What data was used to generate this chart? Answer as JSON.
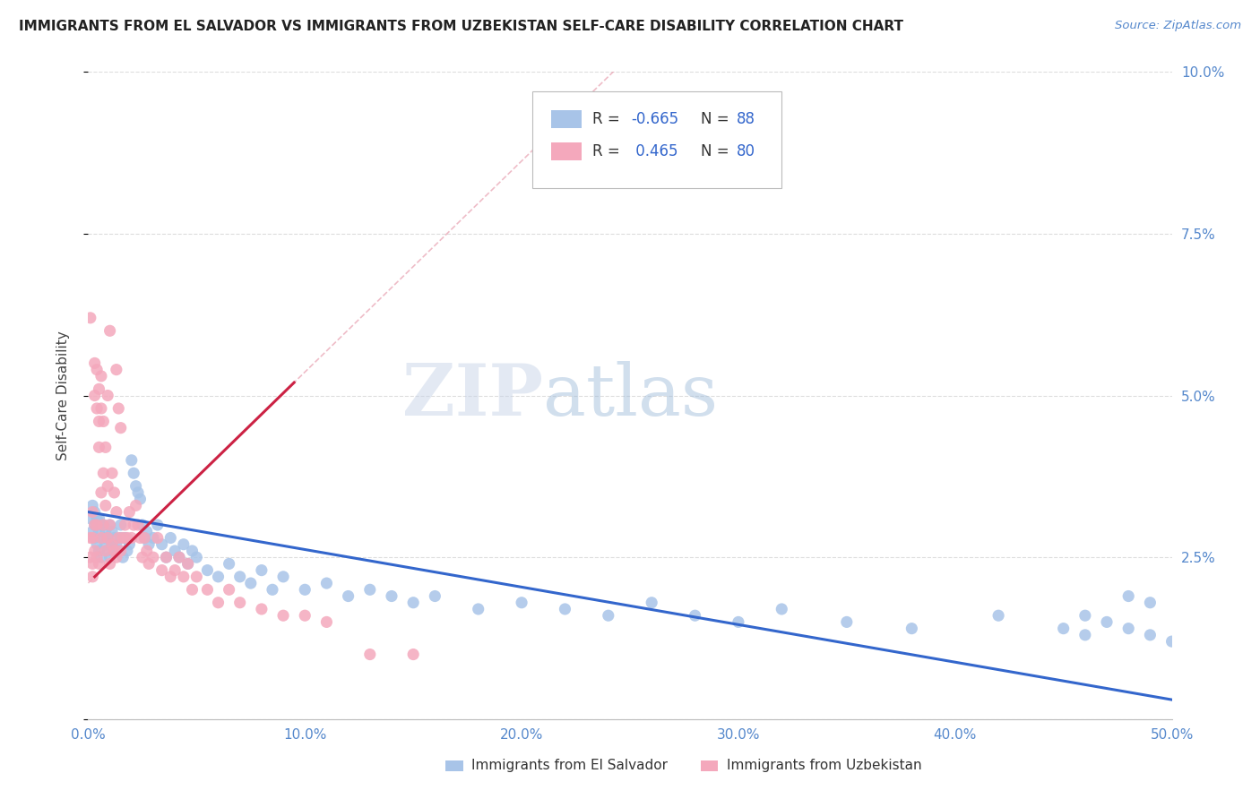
{
  "title": "IMMIGRANTS FROM EL SALVADOR VS IMMIGRANTS FROM UZBEKISTAN SELF-CARE DISABILITY CORRELATION CHART",
  "source": "Source: ZipAtlas.com",
  "ylabel": "Self-Care Disability",
  "xlim": [
    0.0,
    0.5
  ],
  "ylim": [
    0.0,
    0.1
  ],
  "xticks": [
    0.0,
    0.1,
    0.2,
    0.3,
    0.4,
    0.5
  ],
  "xticklabels": [
    "0.0%",
    "10.0%",
    "20.0%",
    "30.0%",
    "40.0%",
    "50.0%"
  ],
  "yticks": [
    0.0,
    0.025,
    0.05,
    0.075,
    0.1
  ],
  "yticklabels": [
    "",
    "2.5%",
    "5.0%",
    "7.5%",
    "10.0%"
  ],
  "legend_labels": [
    "Immigrants from El Salvador",
    "Immigrants from Uzbekistan"
  ],
  "legend_R": [
    "-0.665",
    "0.465"
  ],
  "legend_N": [
    "88",
    "80"
  ],
  "el_salvador_color": "#a8c4e8",
  "uzbekistan_color": "#f4a8bc",
  "el_salvador_line_color": "#3366cc",
  "uzbekistan_line_color": "#cc2244",
  "watermark_zip": "ZIP",
  "watermark_atlas": "atlas",
  "background_color": "#ffffff",
  "grid_color": "#dddddd",
  "el_salvador_x": [
    0.001,
    0.002,
    0.002,
    0.003,
    0.003,
    0.003,
    0.004,
    0.004,
    0.005,
    0.005,
    0.005,
    0.006,
    0.006,
    0.007,
    0.007,
    0.008,
    0.008,
    0.009,
    0.009,
    0.01,
    0.01,
    0.011,
    0.011,
    0.012,
    0.012,
    0.013,
    0.014,
    0.015,
    0.015,
    0.016,
    0.017,
    0.018,
    0.019,
    0.02,
    0.021,
    0.022,
    0.023,
    0.024,
    0.025,
    0.026,
    0.027,
    0.028,
    0.03,
    0.032,
    0.034,
    0.036,
    0.038,
    0.04,
    0.042,
    0.044,
    0.046,
    0.048,
    0.05,
    0.055,
    0.06,
    0.065,
    0.07,
    0.075,
    0.08,
    0.085,
    0.09,
    0.1,
    0.11,
    0.12,
    0.13,
    0.14,
    0.15,
    0.16,
    0.18,
    0.2,
    0.22,
    0.24,
    0.26,
    0.28,
    0.3,
    0.32,
    0.35,
    0.38,
    0.42,
    0.45,
    0.46,
    0.47,
    0.48,
    0.49,
    0.5,
    0.49,
    0.48,
    0.46
  ],
  "el_salvador_y": [
    0.031,
    0.029,
    0.033,
    0.028,
    0.03,
    0.032,
    0.027,
    0.031,
    0.026,
    0.029,
    0.031,
    0.025,
    0.03,
    0.028,
    0.03,
    0.027,
    0.029,
    0.026,
    0.028,
    0.025,
    0.03,
    0.027,
    0.029,
    0.026,
    0.028,
    0.027,
    0.026,
    0.028,
    0.03,
    0.025,
    0.028,
    0.026,
    0.027,
    0.04,
    0.038,
    0.036,
    0.035,
    0.034,
    0.03,
    0.028,
    0.029,
    0.027,
    0.028,
    0.03,
    0.027,
    0.025,
    0.028,
    0.026,
    0.025,
    0.027,
    0.024,
    0.026,
    0.025,
    0.023,
    0.022,
    0.024,
    0.022,
    0.021,
    0.023,
    0.02,
    0.022,
    0.02,
    0.021,
    0.019,
    0.02,
    0.019,
    0.018,
    0.019,
    0.017,
    0.018,
    0.017,
    0.016,
    0.018,
    0.016,
    0.015,
    0.017,
    0.015,
    0.014,
    0.016,
    0.014,
    0.013,
    0.015,
    0.014,
    0.013,
    0.012,
    0.018,
    0.019,
    0.016
  ],
  "uzbekistan_x": [
    0.001,
    0.001,
    0.001,
    0.002,
    0.002,
    0.002,
    0.002,
    0.003,
    0.003,
    0.003,
    0.003,
    0.004,
    0.004,
    0.004,
    0.004,
    0.005,
    0.005,
    0.005,
    0.005,
    0.006,
    0.006,
    0.006,
    0.006,
    0.007,
    0.007,
    0.007,
    0.008,
    0.008,
    0.008,
    0.009,
    0.009,
    0.009,
    0.01,
    0.01,
    0.01,
    0.011,
    0.011,
    0.012,
    0.012,
    0.013,
    0.013,
    0.013,
    0.014,
    0.014,
    0.015,
    0.015,
    0.016,
    0.017,
    0.018,
    0.019,
    0.02,
    0.021,
    0.022,
    0.023,
    0.024,
    0.025,
    0.026,
    0.027,
    0.028,
    0.03,
    0.032,
    0.034,
    0.036,
    0.038,
    0.04,
    0.042,
    0.044,
    0.046,
    0.048,
    0.05,
    0.055,
    0.06,
    0.065,
    0.07,
    0.08,
    0.09,
    0.1,
    0.11,
    0.13,
    0.15
  ],
  "uzbekistan_y": [
    0.025,
    0.028,
    0.062,
    0.024,
    0.028,
    0.032,
    0.022,
    0.026,
    0.03,
    0.05,
    0.055,
    0.025,
    0.03,
    0.048,
    0.054,
    0.024,
    0.042,
    0.046,
    0.051,
    0.028,
    0.035,
    0.048,
    0.053,
    0.03,
    0.038,
    0.046,
    0.026,
    0.033,
    0.042,
    0.028,
    0.036,
    0.05,
    0.024,
    0.03,
    0.06,
    0.027,
    0.038,
    0.026,
    0.035,
    0.025,
    0.032,
    0.054,
    0.028,
    0.048,
    0.026,
    0.045,
    0.028,
    0.03,
    0.028,
    0.032,
    0.028,
    0.03,
    0.033,
    0.03,
    0.028,
    0.025,
    0.028,
    0.026,
    0.024,
    0.025,
    0.028,
    0.023,
    0.025,
    0.022,
    0.023,
    0.025,
    0.022,
    0.024,
    0.02,
    0.022,
    0.02,
    0.018,
    0.02,
    0.018,
    0.017,
    0.016,
    0.016,
    0.015,
    0.01,
    0.01
  ]
}
